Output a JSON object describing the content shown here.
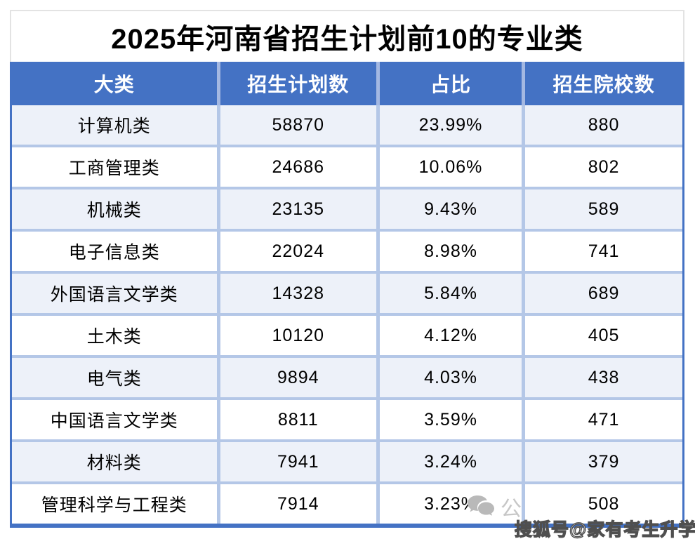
{
  "page": {
    "title": "2025年河南省招生计划前10的专业类"
  },
  "table": {
    "headers": [
      "大类",
      "招生计划数",
      "占比",
      "招生院校数"
    ],
    "rows": [
      {
        "category": "计算机类",
        "plan": "58870",
        "share": "23.99%",
        "schools": "880"
      },
      {
        "category": "工商管理类",
        "plan": "24686",
        "share": "10.06%",
        "schools": "802"
      },
      {
        "category": "机械类",
        "plan": "23135",
        "share": "9.43%",
        "schools": "589"
      },
      {
        "category": "电子信息类",
        "plan": "22024",
        "share": "8.98%",
        "schools": "741"
      },
      {
        "category": "外国语言文学类",
        "plan": "14328",
        "share": "5.84%",
        "schools": "689"
      },
      {
        "category": "土木类",
        "plan": "10120",
        "share": "4.12%",
        "schools": "405"
      },
      {
        "category": "电气类",
        "plan": "9894",
        "share": "4.03%",
        "schools": "438"
      },
      {
        "category": "中国语言文学类",
        "plan": "8811",
        "share": "3.59%",
        "schools": "471"
      },
      {
        "category": "材料类",
        "plan": "7941",
        "share": "3.24%",
        "schools": "379"
      },
      {
        "category": "管理科学与工程类",
        "plan": "7914",
        "share": "3.23%",
        "schools": "508"
      }
    ]
  },
  "watermarks": {
    "wechat_icon": "wechat-bubbles-icon",
    "wechat_label": "公众号·优志愿宝",
    "sohu_label": "搜狐号@家有考生升学帮"
  },
  "colors": {
    "header_bg": "#4472C4",
    "header_text": "#FFFFFF",
    "header_divider": "#A4B8E2",
    "row_alt_bg": "#EDF1F9",
    "grid_line": "#B4C7E7",
    "outer_border": "#4472C4",
    "title_border": "#E3E3E3",
    "watermark_gray": "#C7C7C7"
  },
  "chart_data": {
    "type": "table",
    "title": "2025年河南省招生计划前10的专业类",
    "columns": [
      "大类",
      "招生计划数",
      "占比",
      "招生院校数"
    ],
    "rows": [
      [
        "计算机类",
        58870,
        "23.99%",
        880
      ],
      [
        "工商管理类",
        24686,
        "10.06%",
        802
      ],
      [
        "机械类",
        23135,
        "9.43%",
        589
      ],
      [
        "电子信息类",
        22024,
        "8.98%",
        741
      ],
      [
        "外国语言文学类",
        14328,
        "5.84%",
        689
      ],
      [
        "土木类",
        10120,
        "4.12%",
        405
      ],
      [
        "电气类",
        9894,
        "4.03%",
        438
      ],
      [
        "中国语言文学类",
        8811,
        "3.59%",
        471
      ],
      [
        "材料类",
        7941,
        "3.24%",
        379
      ],
      [
        "管理科学与工程类",
        7914,
        "3.23%",
        508
      ]
    ],
    "layout": {
      "header_style": "blue banded header, white bold text",
      "row_banding": "odd rows light periwinkle, even rows white",
      "alignment": "all cells centered"
    }
  }
}
